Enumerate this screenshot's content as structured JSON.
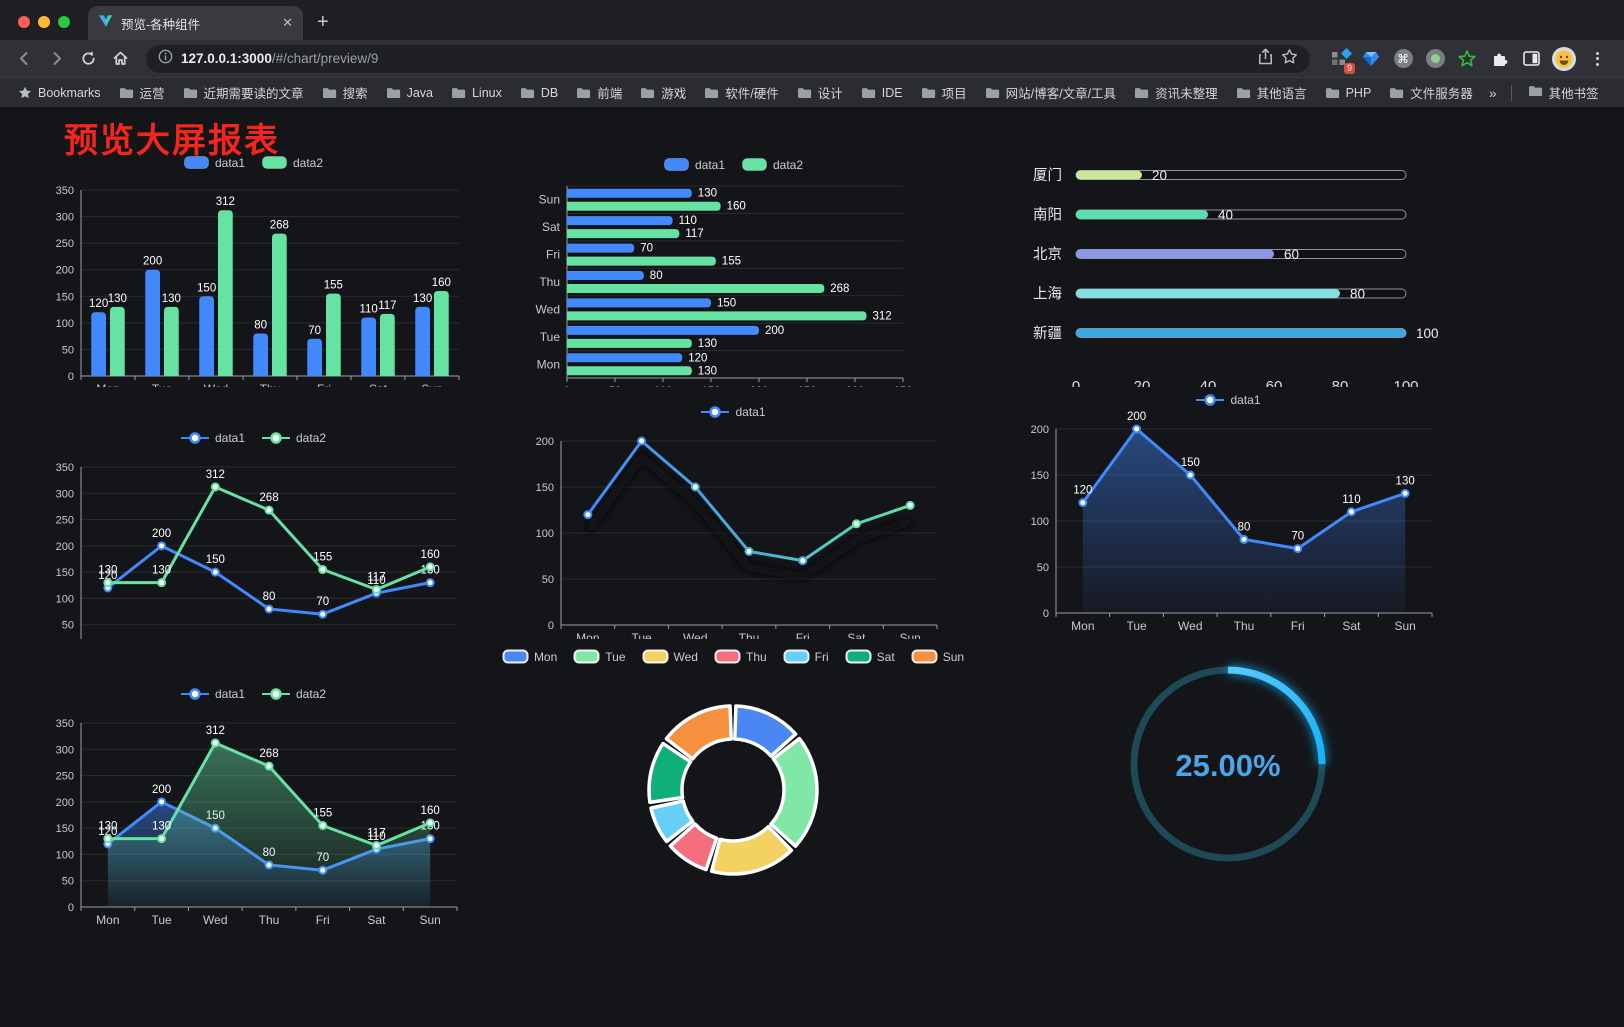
{
  "browser": {
    "tab_title": "预览-各种组件",
    "url_host": "127.0.0.1:3000",
    "url_path": "/#/chart/preview/9",
    "extensions_badge": "9",
    "traffic_lights": [
      "#ff5f57",
      "#febc2e",
      "#28c840"
    ]
  },
  "bookmarks": {
    "root_label": "Bookmarks",
    "folders": [
      "运营",
      "近期需要读的文章",
      "搜索",
      "Java",
      "Linux",
      "DB",
      "前端",
      "游戏",
      "软件/硬件",
      "设计",
      "IDE",
      "项目",
      "网站/博客/文章/工具",
      "资讯未整理",
      "其他语言",
      "PHP",
      "文件服务器"
    ],
    "overflow": "»",
    "other_label": "其他书签"
  },
  "page": {
    "title": "预览大屏报表",
    "title_color": "#f3261b",
    "background": "#141519"
  },
  "chart_data": [
    {
      "type": "bar",
      "orientation": "vertical",
      "legend": true,
      "categories": [
        "Mon",
        "Tue",
        "Wed",
        "Thu",
        "Fri",
        "Sat",
        "Sun"
      ],
      "series": [
        {
          "name": "data1",
          "color": "#4189fd",
          "values": [
            120,
            200,
            150,
            80,
            70,
            110,
            130
          ]
        },
        {
          "name": "data2",
          "color": "#66e2a3",
          "values": [
            130,
            130,
            312,
            268,
            155,
            117,
            160
          ]
        }
      ],
      "ylim": [
        0,
        350
      ],
      "ytick_step": 50,
      "show_labels": true
    },
    {
      "type": "bar",
      "orientation": "horizontal",
      "legend": true,
      "categories": [
        "Mon",
        "Tue",
        "Wed",
        "Thu",
        "Fri",
        "Sat",
        "Sun"
      ],
      "series": [
        {
          "name": "data1",
          "color": "#4189fd",
          "values": [
            120,
            200,
            150,
            80,
            70,
            110,
            130
          ]
        },
        {
          "name": "data2",
          "color": "#66e2a3",
          "values": [
            130,
            130,
            312,
            268,
            155,
            117,
            160
          ]
        }
      ],
      "xlim": [
        0,
        350
      ],
      "xtick_step": 50,
      "show_labels": true
    },
    {
      "type": "progress",
      "max": 100,
      "xticks": [
        0,
        20,
        40,
        60,
        80,
        100
      ],
      "items": [
        {
          "label": "厦门",
          "value": 20,
          "color": "#c9e79b"
        },
        {
          "label": "南阳",
          "value": 40,
          "color": "#5bdcb1"
        },
        {
          "label": "北京",
          "value": 60,
          "color": "#8e96e8"
        },
        {
          "label": "上海",
          "value": 80,
          "color": "#83dfe0"
        },
        {
          "label": "新疆",
          "value": 100,
          "color": "#3ba8e0"
        }
      ]
    },
    {
      "type": "line",
      "legend": true,
      "categories": [
        "Mon",
        "Tue",
        "Wed",
        "Thu",
        "Fri",
        "Sat",
        "Sun"
      ],
      "series": [
        {
          "name": "data1",
          "color": "#4189fd",
          "values": [
            120,
            200,
            150,
            80,
            70,
            110,
            130
          ]
        },
        {
          "name": "data2",
          "color": "#66e2a3",
          "values": [
            130,
            130,
            312,
            268,
            155,
            117,
            160
          ]
        }
      ],
      "ylim": [
        0,
        350
      ],
      "ytick_step": 50,
      "show_labels": true
    },
    {
      "type": "line",
      "variant": "gradient-shadow",
      "legend": true,
      "categories": [
        "Mon",
        "Tue",
        "Wed",
        "Thu",
        "Fri",
        "Sat",
        "Sun"
      ],
      "series": [
        {
          "name": "data1",
          "colors": [
            "#4189fd",
            "#4badd6",
            "#63e3a2"
          ],
          "values": [
            120,
            200,
            150,
            80,
            70,
            110,
            130
          ]
        }
      ],
      "ylim": [
        0,
        200
      ],
      "ytick_step": 50,
      "show_labels": false
    },
    {
      "type": "line",
      "legend": true,
      "categories": [
        "Mon",
        "Tue",
        "Wed",
        "Thu",
        "Fri",
        "Sat",
        "Sun"
      ],
      "series": [
        {
          "name": "data1",
          "color": "#4189fd",
          "area": true,
          "values": [
            120,
            200,
            150,
            80,
            70,
            110,
            130
          ]
        }
      ],
      "ylim": [
        0,
        200
      ],
      "ytick_step": 50,
      "show_labels": true
    },
    {
      "type": "line",
      "legend": true,
      "categories": [
        "Mon",
        "Tue",
        "Wed",
        "Thu",
        "Fri",
        "Sat",
        "Sun"
      ],
      "series": [
        {
          "name": "data1",
          "color": "#4189fd",
          "area": true,
          "values": [
            120,
            200,
            150,
            80,
            70,
            110,
            130
          ]
        },
        {
          "name": "data2",
          "color": "#66e2a3",
          "area": true,
          "values": [
            130,
            130,
            312,
            268,
            155,
            117,
            160
          ]
        }
      ],
      "ylim": [
        0,
        350
      ],
      "ytick_step": 50,
      "show_labels": true
    },
    {
      "type": "pie",
      "donut": true,
      "legend": true,
      "categories": [
        "Mon",
        "Tue",
        "Wed",
        "Thu",
        "Fri",
        "Sat",
        "Sun"
      ],
      "values": [
        120,
        200,
        150,
        80,
        70,
        110,
        130
      ],
      "colors": [
        "#4a87f2",
        "#80e7a6",
        "#f4d261",
        "#f46f7d",
        "#66cff5",
        "#0fae7b",
        "#f4903e"
      ]
    },
    {
      "type": "gauge",
      "value": 25,
      "label": "25.00%",
      "ring_color": "#1d4a55",
      "progress_color": "#18b2f6",
      "text_color": "#4ba5e8"
    }
  ]
}
